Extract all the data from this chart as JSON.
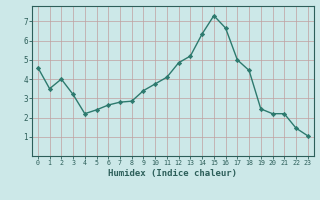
{
  "x": [
    0,
    1,
    2,
    3,
    4,
    5,
    6,
    7,
    8,
    9,
    10,
    11,
    12,
    13,
    14,
    15,
    16,
    17,
    18,
    19,
    20,
    21,
    22,
    23
  ],
  "y": [
    4.6,
    3.5,
    4.0,
    3.2,
    2.2,
    2.4,
    2.65,
    2.8,
    2.85,
    3.4,
    3.75,
    4.1,
    4.85,
    5.2,
    6.35,
    7.3,
    6.65,
    5.0,
    4.45,
    2.45,
    2.2,
    2.2,
    1.45,
    1.05
  ],
  "xlabel": "Humidex (Indice chaleur)",
  "line_color": "#2d7a6e",
  "marker_color": "#2d7a6e",
  "bg_color": "#cce8e8",
  "grid_color": "#c0a0a0",
  "axis_color": "#2d5f5a",
  "xlim": [
    -0.5,
    23.5
  ],
  "ylim": [
    0,
    7.8
  ],
  "yticks": [
    1,
    2,
    3,
    4,
    5,
    6,
    7
  ],
  "xticks": [
    0,
    1,
    2,
    3,
    4,
    5,
    6,
    7,
    8,
    9,
    10,
    11,
    12,
    13,
    14,
    15,
    16,
    17,
    18,
    19,
    20,
    21,
    22,
    23
  ]
}
